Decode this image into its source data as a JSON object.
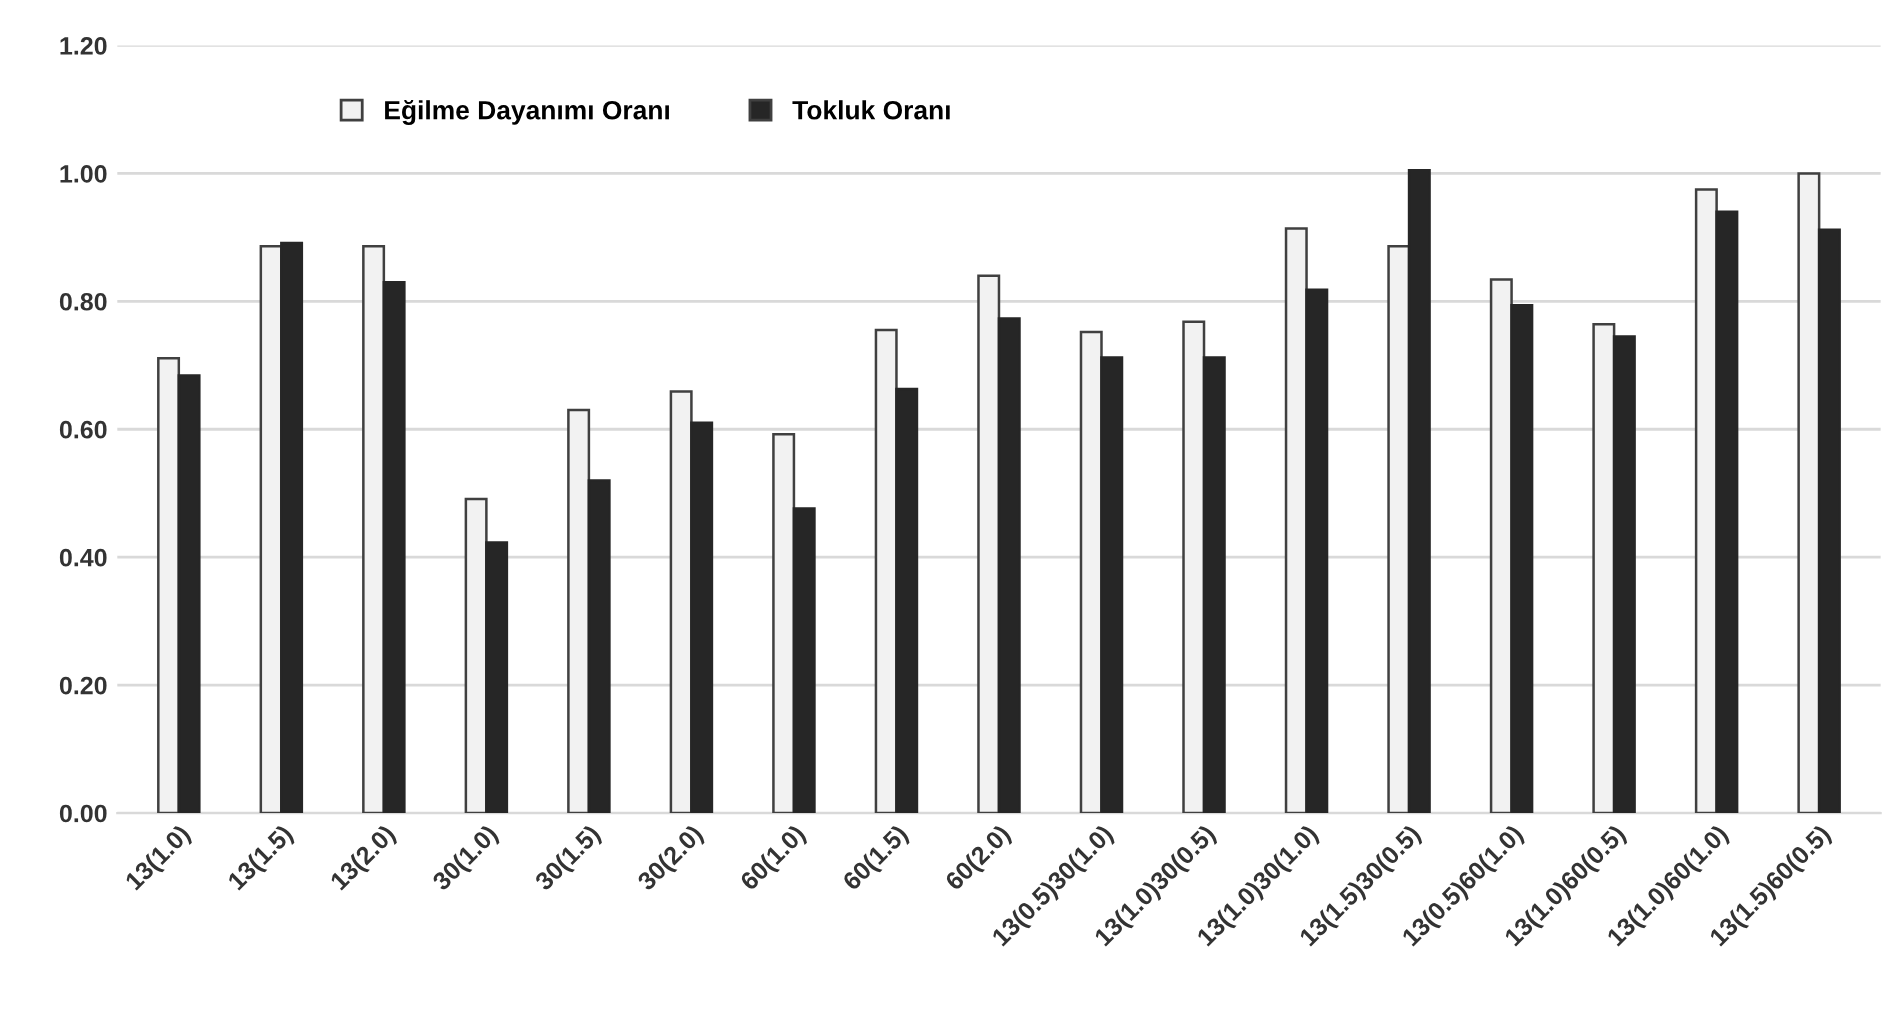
{
  "chart_data": {
    "type": "bar",
    "categories": [
      "13(1.0)",
      "13(1.5)",
      "13(2.0)",
      "30(1.0)",
      "30(1.5)",
      "30(2.0)",
      "60(1.0)",
      "60(1.5)",
      "60(2.0)",
      "13(0.5)30(1.0)",
      "13(1.0)30(0.5)",
      "13(1.0)30(1.0)",
      "13(1.5)30(0.5)",
      "13(0.5)60(1.0)",
      "13(1.0)60(0.5)",
      "13(1.0)60(1.0)",
      "13(1.5)60(0.5)"
    ],
    "series": [
      {
        "name": "Eğilme Dayanımı Oranı",
        "color": "#f2f2f2",
        "values": [
          0.711,
          0.886,
          0.886,
          0.491,
          0.63,
          0.659,
          0.592,
          0.755,
          0.84,
          0.752,
          0.768,
          0.914,
          0.886,
          0.834,
          0.764,
          0.975,
          1.0
        ]
      },
      {
        "name": "Tokluk Oranı",
        "color": "#262626",
        "values": [
          0.684,
          0.891,
          0.83,
          0.423,
          0.52,
          0.61,
          0.476,
          0.663,
          0.773,
          0.712,
          0.712,
          0.818,
          1.005,
          0.794,
          0.745,
          0.94,
          0.912
        ]
      }
    ],
    "ylim": [
      0,
      1.2
    ],
    "yticks": [
      {
        "value": 0,
        "label": "0.00"
      },
      {
        "value": 0.2,
        "label": "0.20"
      },
      {
        "value": 0.4,
        "label": "0.40"
      },
      {
        "value": 0.6,
        "label": "0.60"
      },
      {
        "value": 0.8,
        "label": "0.80"
      },
      {
        "value": 1.0,
        "label": "1.00"
      },
      {
        "value": 1.2,
        "label": "1.20"
      }
    ],
    "grid": "y",
    "legend": "top"
  }
}
